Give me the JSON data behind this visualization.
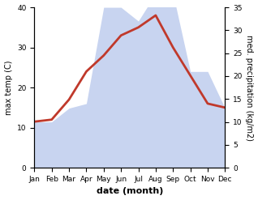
{
  "months": [
    "Jan",
    "Feb",
    "Mar",
    "Apr",
    "May",
    "Jun",
    "Jul",
    "Aug",
    "Sep",
    "Oct",
    "Nov",
    "Dec"
  ],
  "temperature": [
    11.5,
    12,
    17,
    24,
    28,
    33,
    35,
    38,
    30,
    23,
    16,
    15
  ],
  "precipitation": [
    10,
    10,
    13,
    14,
    35,
    35,
    32,
    38,
    38,
    21,
    21,
    13
  ],
  "temp_color": "#c0392b",
  "precip_fill_color": "#c8d4f0",
  "xlabel": "date (month)",
  "ylabel_left": "max temp (C)",
  "ylabel_right": "med. precipitation (kg/m2)",
  "ylim_left": [
    0,
    40
  ],
  "ylim_right": [
    0,
    35
  ],
  "yticks_left": [
    0,
    10,
    20,
    30,
    40
  ],
  "yticks_right": [
    0,
    5,
    10,
    15,
    20,
    25,
    30,
    35
  ],
  "background_color": "#ffffff",
  "temp_linewidth": 2.0
}
